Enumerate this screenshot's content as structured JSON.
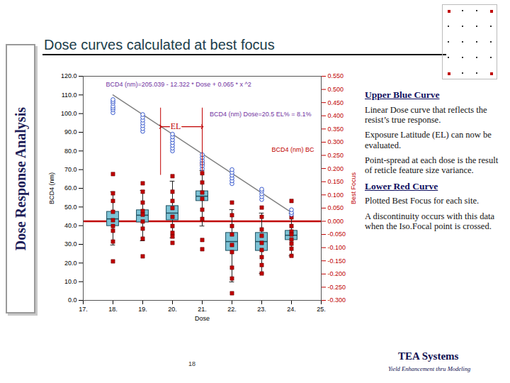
{
  "chart_data": {
    "type": "box",
    "title": "Dose curves calculated at best focus",
    "x_label": "Dose",
    "y_label": "BCD4 (nm)",
    "y2_label": "Best Focus",
    "xlim": [
      17,
      25
    ],
    "xticks": [
      {
        "value": 17,
        "label": "17."
      },
      {
        "value": 18,
        "label": "18."
      },
      {
        "value": 19,
        "label": "19."
      },
      {
        "value": 20,
        "label": "20."
      },
      {
        "value": 21,
        "label": "21."
      },
      {
        "value": 22,
        "label": "22."
      },
      {
        "value": 23,
        "label": "23."
      },
      {
        "value": 24,
        "label": "24."
      },
      {
        "value": 25,
        "label": "25."
      }
    ],
    "ylim": [
      0,
      120
    ],
    "yticks": [
      {
        "value": 0,
        "label": "0.0"
      },
      {
        "value": 10,
        "label": "10.0"
      },
      {
        "value": 20,
        "label": "20.0"
      },
      {
        "value": 30,
        "label": "30.0"
      },
      {
        "value": 40,
        "label": "40.0"
      },
      {
        "value": 50,
        "label": "50.0"
      },
      {
        "value": 60,
        "label": "60.0"
      },
      {
        "value": 70,
        "label": "70.0"
      },
      {
        "value": 80,
        "label": "80.0"
      },
      {
        "value": 90,
        "label": "90.0"
      },
      {
        "value": 100,
        "label": "100.0"
      },
      {
        "value": 110,
        "label": "110.0"
      },
      {
        "value": 120,
        "label": "120.0"
      }
    ],
    "y2lim": [
      -0.3,
      0.55
    ],
    "y2ticks": [
      {
        "value": 0.55,
        "label": "0.550"
      },
      {
        "value": 0.5,
        "label": "0.500"
      },
      {
        "value": 0.45,
        "label": "0.450"
      },
      {
        "value": 0.4,
        "label": "0.400"
      },
      {
        "value": 0.35,
        "label": "0.350"
      },
      {
        "value": 0.3,
        "label": "0.300"
      },
      {
        "value": 0.25,
        "label": "0.250"
      },
      {
        "value": 0.2,
        "label": "0.200"
      },
      {
        "value": 0.15,
        "label": "0.150"
      },
      {
        "value": 0.1,
        "label": "0.100"
      },
      {
        "value": 0.05,
        "label": "0.050"
      },
      {
        "value": 0,
        "label": "0.000"
      },
      {
        "value": -0.05,
        "label": "-0.050"
      },
      {
        "value": -0.1,
        "label": "-0.100"
      },
      {
        "value": -0.15,
        "label": "-0.150"
      },
      {
        "value": -0.2,
        "label": "-0.200"
      },
      {
        "value": -0.25,
        "label": "-0.250"
      },
      {
        "value": -0.3,
        "label": "-0.300"
      }
    ],
    "grid": false,
    "series": [
      {
        "name": "Lower Red Curve",
        "type": "box",
        "axis": "y2",
        "color": "#7cc3d6",
        "x": [
          18,
          19,
          20,
          21,
          22,
          23,
          24
        ],
        "whisker_low": [
          -0.09,
          -0.074,
          -0.063,
          -0.018,
          -0.23,
          -0.198,
          -0.131
        ],
        "q1": [
          -0.018,
          -0.004,
          0.004,
          0.077,
          -0.112,
          -0.112,
          -0.071
        ],
        "median": [
          0.009,
          0.023,
          0.031,
          0.095,
          -0.077,
          -0.077,
          -0.053
        ],
        "q3": [
          0.036,
          0.042,
          0.058,
          0.114,
          -0.044,
          -0.044,
          -0.036
        ],
        "whisker_high": [
          0.112,
          0.117,
          0.152,
          0.192,
          0.044,
          0.031,
          0.031
        ]
      },
      {
        "type": "scatter",
        "axis": "y2",
        "color": "#c00000",
        "marker": "square",
        "x": [
          18,
          18,
          18,
          18,
          18,
          18,
          18,
          18,
          18,
          19,
          19,
          19,
          19,
          19,
          19,
          19,
          19,
          19,
          20,
          20,
          20,
          20,
          20,
          20,
          20,
          20,
          20,
          21,
          21,
          21,
          21,
          21,
          21,
          21,
          21,
          21,
          22,
          22,
          22,
          22,
          22,
          22,
          22,
          22,
          22,
          23,
          23,
          23,
          23,
          23,
          23,
          23,
          23,
          23,
          24,
          24,
          24,
          24,
          24,
          24,
          24,
          24,
          24
        ],
        "values": [
          0.179,
          0.106,
          0.077,
          0.036,
          0.004,
          -0.018,
          -0.036,
          -0.077,
          -0.152,
          0.144,
          0.112,
          0.071,
          0.039,
          0.025,
          -0.001,
          -0.028,
          -0.066,
          -0.133,
          0.171,
          0.112,
          0.077,
          0.05,
          0.017,
          -0.018,
          -0.044,
          -0.058,
          -0.082,
          0.219,
          0.182,
          0.147,
          0.109,
          0.085,
          0.044,
          0.009,
          -0.071,
          -0.106,
          0.071,
          0.023,
          -0.018,
          -0.05,
          -0.09,
          -0.117,
          -0.176,
          -0.217,
          -0.273,
          0.052,
          0.017,
          -0.031,
          -0.055,
          -0.082,
          -0.109,
          -0.136,
          -0.166,
          -0.198,
          0.077,
          0.015,
          -0.018,
          -0.039,
          -0.05,
          -0.069,
          -0.085,
          -0.104,
          -0.131
        ]
      },
      {
        "type": "line",
        "color": "#808080",
        "x": [
          18,
          24
        ],
        "values": [
          110,
          47
        ]
      },
      {
        "name": "Upper Blue Curve",
        "type": "scatter",
        "color": "#3355cc",
        "marker": "circle",
        "x": [
          18,
          18,
          18,
          18,
          18,
          18,
          18,
          19,
          19,
          19,
          19,
          19,
          19,
          19,
          20,
          20,
          20,
          20,
          20,
          20,
          20,
          21,
          21,
          21,
          21,
          21,
          21,
          22,
          22,
          22,
          22,
          22,
          22,
          23,
          23,
          23,
          23,
          23,
          24,
          24,
          24
        ],
        "values": [
          100.5,
          102,
          103,
          104,
          105.5,
          106.5,
          107.5,
          90.5,
          92,
          93.5,
          95,
          96.5,
          98,
          99.5,
          80,
          81.5,
          83,
          84.5,
          86,
          87.5,
          89,
          70.5,
          72,
          73.5,
          75,
          76.5,
          78,
          62.5,
          64,
          65.5,
          67,
          68.5,
          70,
          54,
          55.5,
          57,
          58.5,
          59.5,
          46,
          47,
          48.5
        ]
      }
    ],
    "reference_line": {
      "axis": "y2",
      "value": 0,
      "color": "#c00000"
    },
    "el": {
      "label": "EL",
      "x": [
        19.6,
        21.0
      ],
      "y": 93,
      "y_range": [
        67,
        103
      ],
      "color": "#c00000"
    },
    "annotations": [
      {
        "text": "BCD4 (nm)=205.039 - 12.322 * Dose + 0.065 * x ^2",
        "color": "#7030a0"
      },
      {
        "text": "BCD4 (nm) Dose=20.5 EL% = 8.1%",
        "color": "#7030a0"
      },
      {
        "text": "BCD4 (nm) BC",
        "color": "#c00000"
      }
    ]
  },
  "page": {
    "side_title": "Dose Response Analysis",
    "notes": [
      {
        "heading": "Upper Blue Curve",
        "paragraphs": [
          "Linear Dose curve that reflects the resist’s true response.",
          "Exposure Latitude (EL) can now be evaluated.",
          "Point-spread at each dose is the result of reticle feature size variance."
        ]
      },
      {
        "heading": "Lower Red Curve",
        "paragraphs": [
          "Plotted Best Focus for each site.",
          "A discontinuity occurs with this data when the Iso.Focal point is crossed."
        ]
      }
    ],
    "page_number": "18",
    "company": "TEA Systems",
    "tagline": "Yield Enhancement thru Modeling"
  }
}
